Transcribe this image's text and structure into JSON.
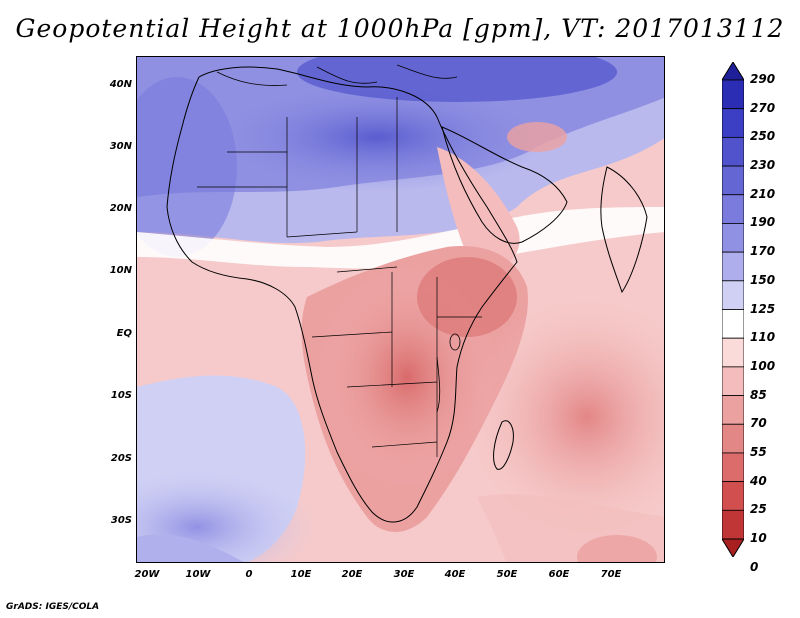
{
  "title": "Geopotential Height at 1000hPa [gpm], VT: 2017013112",
  "footer": "GrADS: IGES/COLA",
  "map": {
    "lat_labels": [
      "40N",
      "30N",
      "20N",
      "10N",
      "EQ",
      "10S",
      "20S",
      "30S"
    ],
    "lon_labels": [
      "20W",
      "10W",
      "0",
      "10E",
      "20E",
      "30E",
      "40E",
      "50E",
      "60E",
      "70E"
    ],
    "extent": {
      "lon_min": -22,
      "lon_max": 80,
      "lat_min": -37,
      "lat_max": 45
    }
  },
  "colorbar": {
    "labels": [
      "290",
      "270",
      "250",
      "230",
      "210",
      "190",
      "170",
      "150",
      "125",
      "110",
      "100",
      "85",
      "70",
      "55",
      "40",
      "25",
      "10",
      "0"
    ],
    "colors": [
      "#1f1f9a",
      "#2b2db5",
      "#3c3fc4",
      "#5053cc",
      "#6466d4",
      "#7a7bdc",
      "#9191e4",
      "#aeaeec",
      "#cfd0f4",
      "#ffffff",
      "#fbdada",
      "#f4bcbc",
      "#eca1a1",
      "#e38686",
      "#dc6b6b",
      "#d24f4f",
      "#c03535",
      "#a82020"
    ]
  }
}
